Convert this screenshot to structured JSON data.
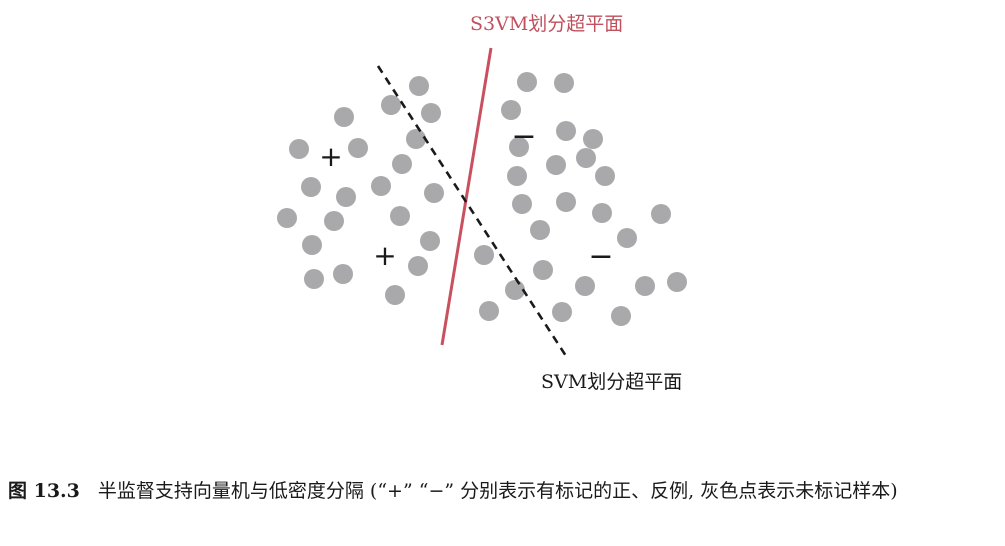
{
  "figure": {
    "s3vm_label": "S3VM划分超平面",
    "svm_label": "SVM划分超平面",
    "plus_symbol": "+",
    "minus_symbol": "−",
    "colors": {
      "s3vm_line": "#c8505f",
      "svm_line": "#1a1a1a",
      "unlabeled_point": "#a9a9ab"
    }
  },
  "caption": {
    "figure_number": "图 13.3",
    "text": "半监督支持向量机与低密度分隔 (“+” “−” 分别表示有标记的正、反例, 灰色点表示未标记样本)"
  }
}
